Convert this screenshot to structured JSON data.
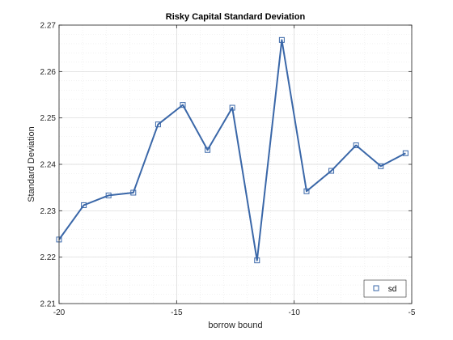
{
  "chart_data": {
    "type": "line",
    "title": "Risky Capital Standard Deviation",
    "xlabel": "borrow bound",
    "ylabel": "Standard Deviation",
    "xlim": [
      -20,
      -5
    ],
    "ylim": [
      2.21,
      2.27
    ],
    "x_ticks": [
      -20,
      -15,
      -10,
      -5
    ],
    "y_ticks": [
      2.21,
      2.22,
      2.23,
      2.24,
      2.25,
      2.26,
      2.27
    ],
    "x_tick_labels": [
      "-20",
      "-15",
      "-10",
      "-5"
    ],
    "y_tick_labels": [
      "2.21",
      "2.22",
      "2.23",
      "2.24",
      "2.25",
      "2.26",
      "2.27"
    ],
    "grid": true,
    "minor_grid": true,
    "legend_position": "bottom-right",
    "series": [
      {
        "name": "sd",
        "color": "#3a67a8",
        "marker": "square",
        "x": [
          -20.0,
          -18.947,
          -17.895,
          -16.842,
          -15.789,
          -14.737,
          -13.684,
          -12.632,
          -11.579,
          -10.526,
          -9.474,
          -8.421,
          -7.368,
          -6.316,
          -5.263
        ],
        "y": [
          2.2238,
          2.2312,
          2.2333,
          2.2339,
          2.2486,
          2.2528,
          2.2431,
          2.2522,
          2.2193,
          2.2668,
          2.2342,
          2.2386,
          2.2441,
          2.2396,
          2.2424
        ]
      }
    ]
  }
}
